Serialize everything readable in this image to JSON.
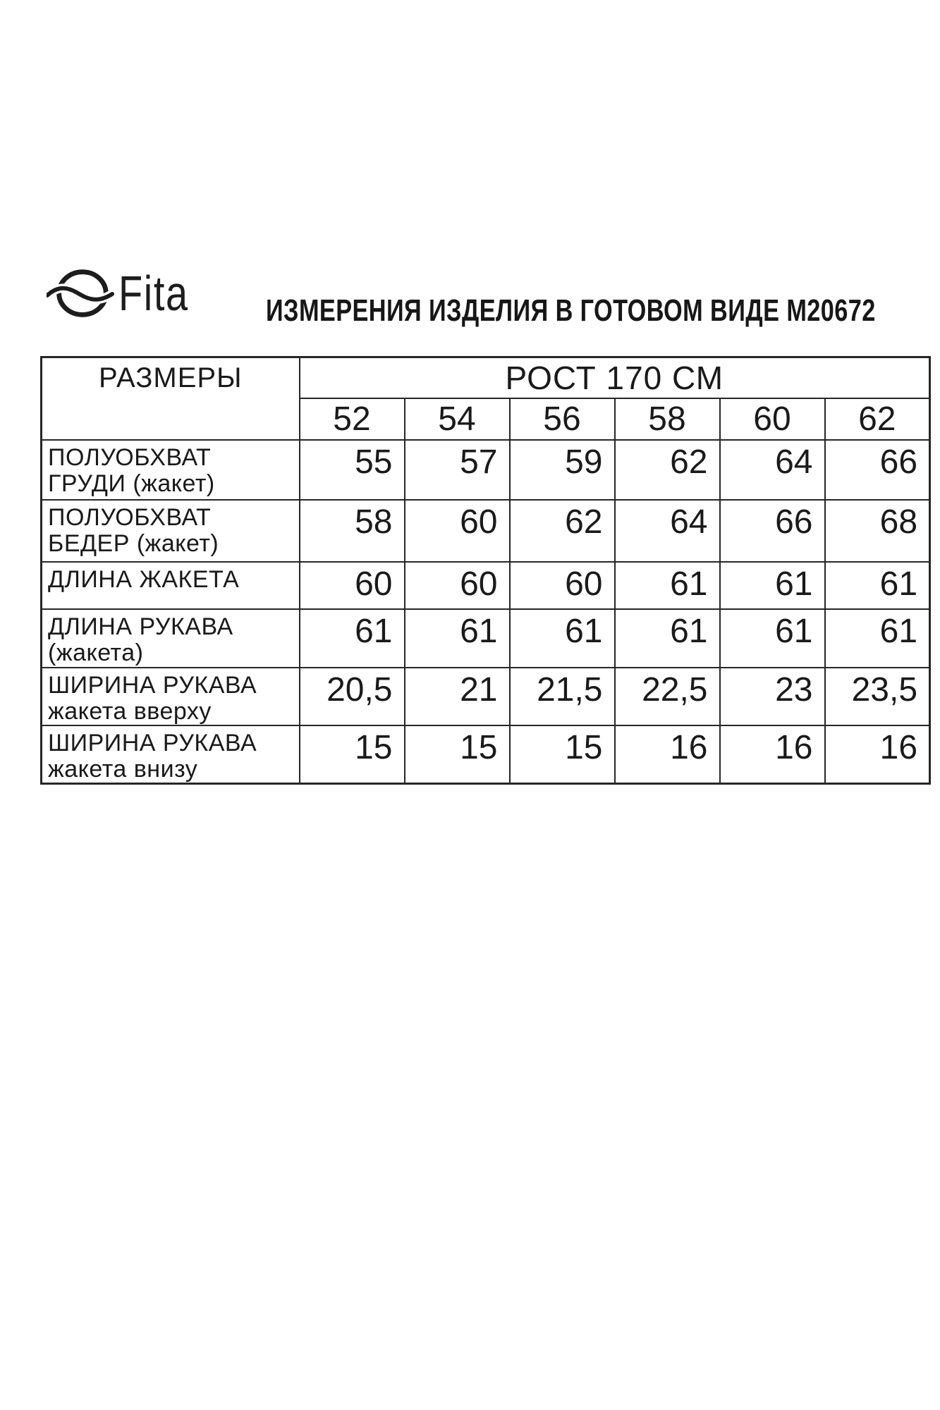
{
  "brand": {
    "name": "Fita",
    "logo_icon": "ellipse-wave-icon"
  },
  "title": "ИЗМЕРЕНИЯ ИЗДЕЛИЯ В ГОТОВОМ ВИДЕ М20672",
  "table": {
    "corner_header": "РАЗМЕРЫ",
    "group_header": "РОСТ 170 СМ",
    "size_columns": [
      "52",
      "54",
      "56",
      "58",
      "60",
      "62"
    ],
    "rows": [
      {
        "label": "ПОЛУОБХВАТ ГРУДИ (жакет)",
        "lines": [
          "ПОЛУОБХВАТ",
          "ГРУДИ (жакет)"
        ],
        "values": [
          "55",
          "57",
          "59",
          "62",
          "64",
          "66"
        ]
      },
      {
        "label": "ПОЛУОБХВАТ БЕДЕР (жакет)",
        "lines": [
          "ПОЛУОБХВАТ",
          "БЕДЕР (жакет)"
        ],
        "values": [
          "58",
          "60",
          "62",
          "64",
          "66",
          "68"
        ]
      },
      {
        "label": "ДЛИНА ЖАКЕТА",
        "lines": [
          "ДЛИНА ЖАКЕТА"
        ],
        "values": [
          "60",
          "60",
          "60",
          "61",
          "61",
          "61"
        ]
      },
      {
        "label": "ДЛИНА РУКАВА (жакета)",
        "lines": [
          "ДЛИНА РУКАВА",
          "(жакета)"
        ],
        "values": [
          "61",
          "61",
          "61",
          "61",
          "61",
          "61"
        ]
      },
      {
        "label": "ШИРИНА РУКАВА жакета вверху",
        "lines": [
          "ШИРИНА РУКАВА",
          "жакета вверху"
        ],
        "values": [
          "20,5",
          "21",
          "21,5",
          "22,5",
          "23",
          "23,5"
        ]
      },
      {
        "label": "ШИРИНА РУКАВА жакета внизу",
        "lines": [
          "ШИРИНА РУКАВА",
          "жакета внизу"
        ],
        "values": [
          "15",
          "15",
          "15",
          "16",
          "16",
          "16"
        ]
      }
    ]
  },
  "colors": {
    "background": "#ffffff",
    "text": "#1a1a1a",
    "border": "#262626"
  }
}
